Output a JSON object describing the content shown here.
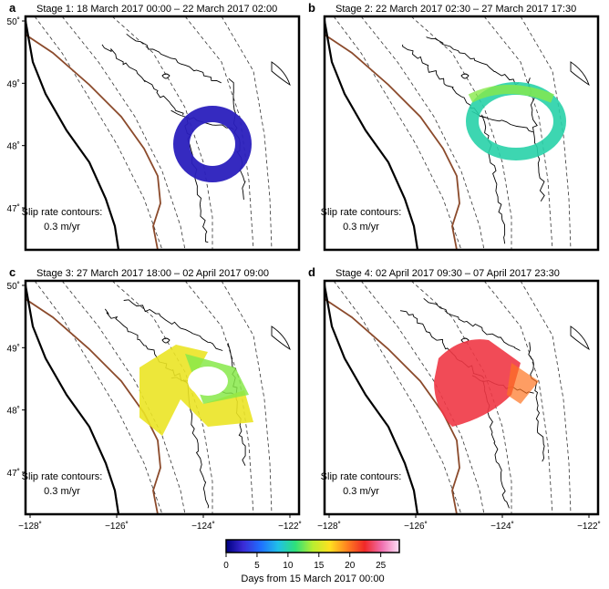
{
  "panels": [
    {
      "letter": "a",
      "title": "Stage 1: 18 March 2017 00:00 – 22 March 2017 02:00",
      "contour_label": "Slip rate contours:",
      "contour_value": "0.3 m/yr",
      "day": 2.0,
      "shape": "ring-se"
    },
    {
      "letter": "b",
      "title": "Stage 2: 22 March 2017 02:30 – 27 March 2017 17:30",
      "contour_label": "Slip rate contours:",
      "contour_value": "0.3 m/yr",
      "day": 10.0,
      "shape": "ring-mid"
    },
    {
      "letter": "c",
      "title": "Stage 3: 27 March 2017 18:00 – 02 April 2017 09:00",
      "contour_label": "Slip rate contours:",
      "contour_value": "0.3 m/yr",
      "day": 16.0,
      "shape": "bowtie"
    },
    {
      "letter": "d",
      "title": "Stage 4: 02 April 2017 09:30 – 07 April 2017 23:30",
      "contour_label": "Slip rate contours:",
      "contour_value": "0.3 m/yr",
      "day": 23.0,
      "shape": "fan-nw"
    }
  ],
  "axes": {
    "lat_ticks": [
      "50˚",
      "49˚",
      "48˚",
      "47˚"
    ],
    "lon_ticks": [
      "−128˚",
      "−126˚",
      "−124˚",
      "−122˚"
    ]
  },
  "colorbar": {
    "ticks": [
      "0",
      "5",
      "10",
      "15",
      "20",
      "25"
    ],
    "label": "Days from 15 March 2017 00:00",
    "min": 0,
    "max": 28,
    "colors": [
      "#000080",
      "#3b2bd6",
      "#1f6fff",
      "#20c0e8",
      "#2ee07a",
      "#b8ee30",
      "#ffe020",
      "#ff8020",
      "#f02828",
      "#f070b0",
      "#ffe0f8"
    ]
  },
  "map_colors": {
    "trench": "#000000",
    "plate_contour": "#8b4a2b",
    "depth_contours": "#333333",
    "coast": "#000000"
  }
}
